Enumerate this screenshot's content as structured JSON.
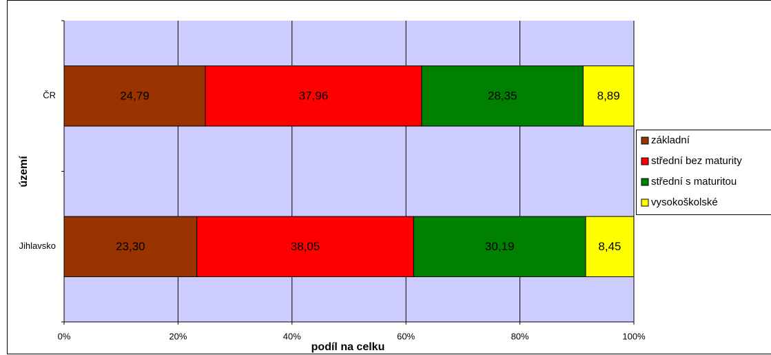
{
  "chart_data": {
    "type": "stacked_bar_horizontal",
    "x_label": "podíl na celku",
    "y_label": "území",
    "categories": [
      "ČR",
      "Jihlavsko"
    ],
    "series": [
      {
        "name": "základní",
        "color": "#993300",
        "values": [
          24.79,
          23.3
        ],
        "value_labels": [
          "24,79",
          "23,30"
        ]
      },
      {
        "name": "střední bez maturity",
        "color": "#FF0000",
        "values": [
          37.96,
          38.05
        ],
        "value_labels": [
          "37,96",
          "38,05"
        ]
      },
      {
        "name": "střední s maturitou",
        "color": "#008000",
        "values": [
          28.35,
          30.19
        ],
        "value_labels": [
          "28,35",
          "30,19"
        ]
      },
      {
        "name": "vysokoškolské",
        "color": "#FFFF00",
        "values": [
          8.89,
          8.45
        ],
        "value_labels": [
          "8,89",
          "8,45"
        ]
      }
    ],
    "xlim": [
      0,
      100
    ],
    "xticks": [
      {
        "value": 0,
        "label": "0%"
      },
      {
        "value": 20,
        "label": "20%"
      },
      {
        "value": 40,
        "label": "40%"
      },
      {
        "value": 60,
        "label": "60%"
      },
      {
        "value": 80,
        "label": "80%"
      },
      {
        "value": 100,
        "label": "100%"
      }
    ],
    "grid": true,
    "legend": "right"
  }
}
